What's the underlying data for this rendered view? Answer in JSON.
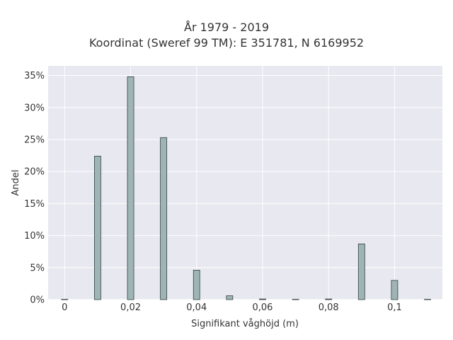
{
  "title_line1": "År 1979 - 2019",
  "title_line2": "Koordinat (Sweref 99 TM): E 351781, N 6169952",
  "colors": {
    "plot_bg": "#e8e8f0",
    "grid": "#ffffff",
    "bar_fill": "#9fb5b5",
    "bar_stroke": "#2f3f3f"
  },
  "chart_data": {
    "type": "bar",
    "title": "År 1979 - 2019",
    "subtitle": "Koordinat (Sweref 99 TM): E 351781, N 6169952",
    "xlabel": "Signifikant våghöjd (m)",
    "ylabel": "Andel",
    "x": [
      0,
      0.01,
      0.02,
      0.03,
      0.04,
      0.05,
      0.06,
      0.07,
      0.08,
      0.09,
      0.1,
      0.11
    ],
    "values": [
      0.05,
      22.4,
      34.8,
      25.3,
      4.6,
      0.6,
      0.1,
      0.05,
      0.1,
      8.7,
      3.0,
      0.05
    ],
    "xlim": [
      -0.005,
      0.1145
    ],
    "ylim": [
      0,
      36.5
    ],
    "xticks": [
      0,
      0.02,
      0.04,
      0.06,
      0.08,
      0.1
    ],
    "xtick_labels": [
      "0",
      "0,02",
      "0,04",
      "0,06",
      "0,08",
      "0,1"
    ],
    "yticks": [
      0,
      5,
      10,
      15,
      20,
      25,
      30,
      35
    ],
    "ytick_labels": [
      "0%",
      "5%",
      "10%",
      "15%",
      "20%",
      "25%",
      "30%",
      "35%"
    ],
    "grid": true
  }
}
